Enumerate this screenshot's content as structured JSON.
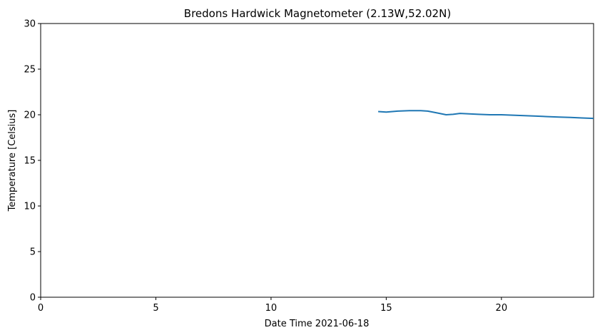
{
  "chart_data": {
    "type": "line",
    "title": "Bredons Hardwick Magnetometer (2.13W,52.02N)",
    "xlabel": "Date Time 2021-06-18",
    "ylabel": "Temperature [Celsius]",
    "xlim": [
      0,
      24
    ],
    "ylim": [
      0,
      30
    ],
    "xticks": [
      0,
      5,
      10,
      15,
      20
    ],
    "yticks": [
      0,
      5,
      10,
      15,
      20,
      25,
      30
    ],
    "grid": false,
    "line_color": "#1f77b4",
    "series": [
      {
        "x": [
          14.65,
          15.0,
          15.5,
          16.0,
          16.5,
          16.8,
          17.2,
          17.6,
          17.9,
          18.2,
          18.6,
          19.0,
          19.5,
          20.0,
          20.5,
          21.0,
          21.5,
          22.0,
          22.5,
          23.0,
          23.5,
          24.0
        ],
        "values": [
          20.35,
          20.3,
          20.4,
          20.45,
          20.45,
          20.4,
          20.2,
          20.0,
          20.05,
          20.15,
          20.1,
          20.05,
          20.0,
          20.0,
          19.95,
          19.9,
          19.85,
          19.8,
          19.75,
          19.7,
          19.65,
          19.6
        ]
      }
    ]
  }
}
